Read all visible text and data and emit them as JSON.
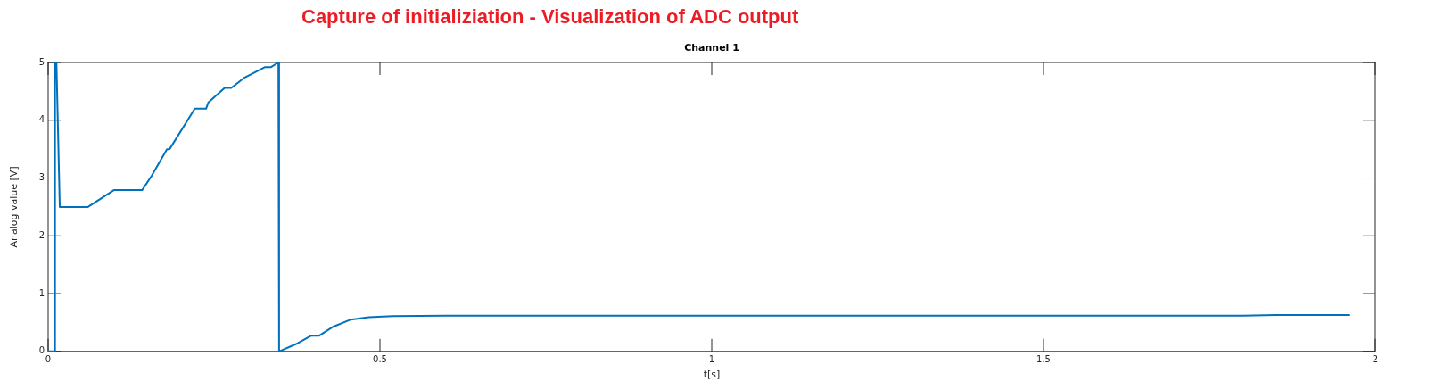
{
  "chart_data": {
    "type": "line",
    "title": "Capture of initializiation - Visualization of ADC output",
    "subtitle": "Channel 1",
    "xlabel": "t[s]",
    "ylabel": "Analog value [V]",
    "x": [
      0,
      0.0103,
      0.0103,
      0.0125,
      0.0175,
      0.06,
      0.099,
      0.1416,
      0.156,
      0.179,
      0.183,
      0.221,
      0.238,
      0.2415,
      0.266,
      0.276,
      0.295,
      0.327,
      0.336,
      0.347,
      0.348,
      0.376,
      0.396,
      0.408,
      0.43,
      0.456,
      0.483,
      0.519,
      0.6,
      1.0,
      1.5,
      1.8,
      1.85,
      1.962
    ],
    "series": [
      {
        "color": "#0072bd",
        "values": [
          0,
          0,
          5,
          5,
          2.5,
          2.5,
          2.79,
          2.79,
          3.04,
          3.5,
          3.5,
          4.2,
          4.2,
          4.31,
          4.56,
          4.56,
          4.73,
          4.92,
          4.92,
          5,
          0,
          0.14,
          0.27,
          0.27,
          0.43,
          0.55,
          0.59,
          0.61,
          0.62,
          0.62,
          0.62,
          0.62,
          0.63,
          0.63
        ]
      }
    ],
    "xlim": [
      0,
      2
    ],
    "xticks": [
      0,
      0.5,
      1,
      1.5,
      2
    ],
    "ylim": [
      0,
      5
    ],
    "yticks": [
      0,
      1,
      2,
      3,
      4,
      5
    ],
    "marker": "none",
    "line_style": "solid",
    "legend": false
  }
}
